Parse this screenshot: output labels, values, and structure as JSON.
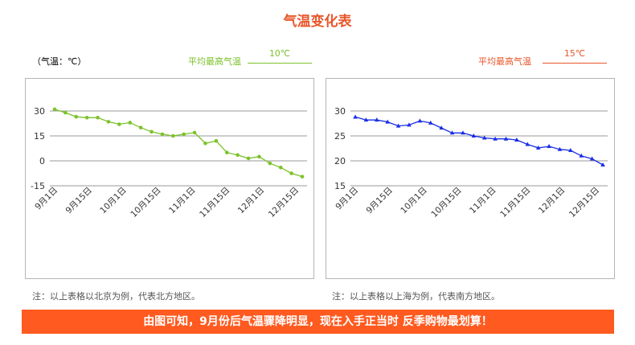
{
  "page": {
    "title": "气温变化表",
    "unit": "（气温：℃）",
    "banner": "由图可知，9月份后气温骤降明显，现在入手正当时 反季购物最划算！"
  },
  "colors": {
    "title": "#e8562a",
    "north_line": "#7cc22a",
    "south_line": "#1a2ee6",
    "banner": "#ff5a1f",
    "grid": "#9a9a9a"
  },
  "left": {
    "avg_label": "平均最高气温",
    "avg_value": "10℃",
    "note": "注：以上表格以北京为例，代表北方地区。"
  },
  "right": {
    "avg_label": "平均最高气温",
    "avg_value": "15℃",
    "note": "注：以上表格以上海为例，代表南方地区。"
  },
  "chart_data": [
    {
      "type": "line",
      "x_ticks": [
        "9月1日",
        "9月15日",
        "10月1日",
        "10月15日",
        "11月1日",
        "11月15日",
        "12月1日",
        "12月15日"
      ],
      "y_ticks": [
        30,
        15,
        0,
        -15
      ],
      "ylim": [
        -15,
        30
      ],
      "grid": true,
      "marker": "circle",
      "series": [
        {
          "values": [
            31,
            29,
            26.5,
            26,
            26,
            23.5,
            22,
            23,
            20,
            17.5,
            16,
            15,
            16,
            17,
            10.5,
            12,
            5,
            3.5,
            1.5,
            2.5,
            -1.5,
            -4,
            -7.5,
            -9.5
          ]
        }
      ]
    },
    {
      "type": "line",
      "x_ticks": [
        "9月1日",
        "9月15日",
        "10月1日",
        "10月15日",
        "11月1日",
        "11月15日",
        "12月1日",
        "12月15日"
      ],
      "y_ticks": [
        30,
        25,
        20,
        15
      ],
      "ylim": [
        15,
        30
      ],
      "grid": true,
      "marker": "triangle",
      "series": [
        {
          "values": [
            28.8,
            28.2,
            28.2,
            27.8,
            27,
            27.2,
            28,
            27.6,
            26.6,
            25.6,
            25.6,
            25,
            24.6,
            24.4,
            24.4,
            24.2,
            23.3,
            22.6,
            22.9,
            22.3,
            22.1,
            21,
            20.4,
            19.2
          ]
        }
      ]
    }
  ]
}
